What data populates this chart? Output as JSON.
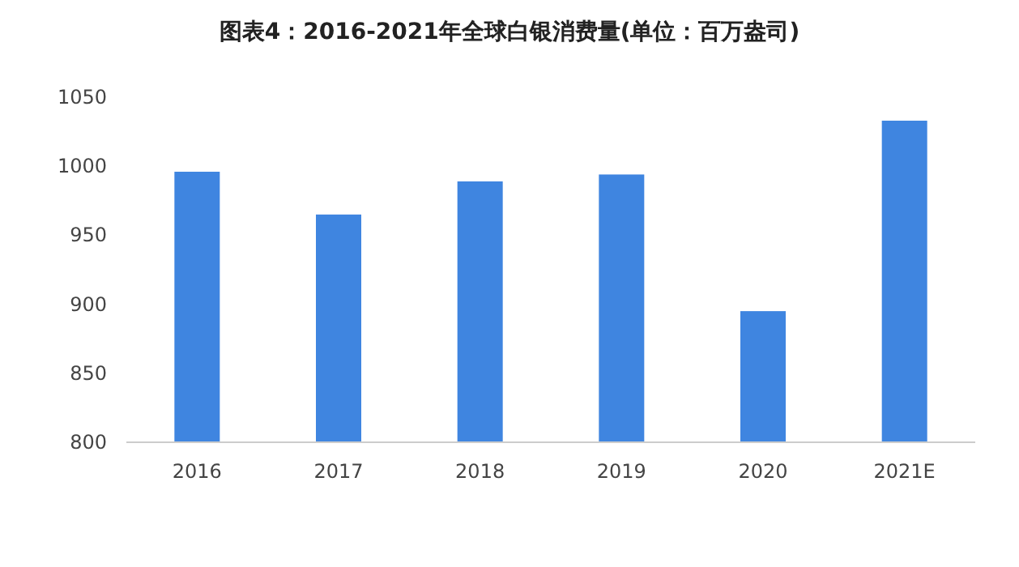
{
  "chart_data": {
    "type": "bar",
    "title": "图表4：2016-2021年全球白银消费量(单位：百万盎司)",
    "categories": [
      "2016",
      "2017",
      "2018",
      "2019",
      "2020",
      "2021E"
    ],
    "values": [
      996,
      965,
      989,
      994,
      895,
      1033
    ],
    "color": "#3f85e0",
    "ylim": [
      800,
      1050
    ],
    "yticks": [
      800,
      850,
      900,
      950,
      1000,
      1050
    ],
    "grid": false
  }
}
